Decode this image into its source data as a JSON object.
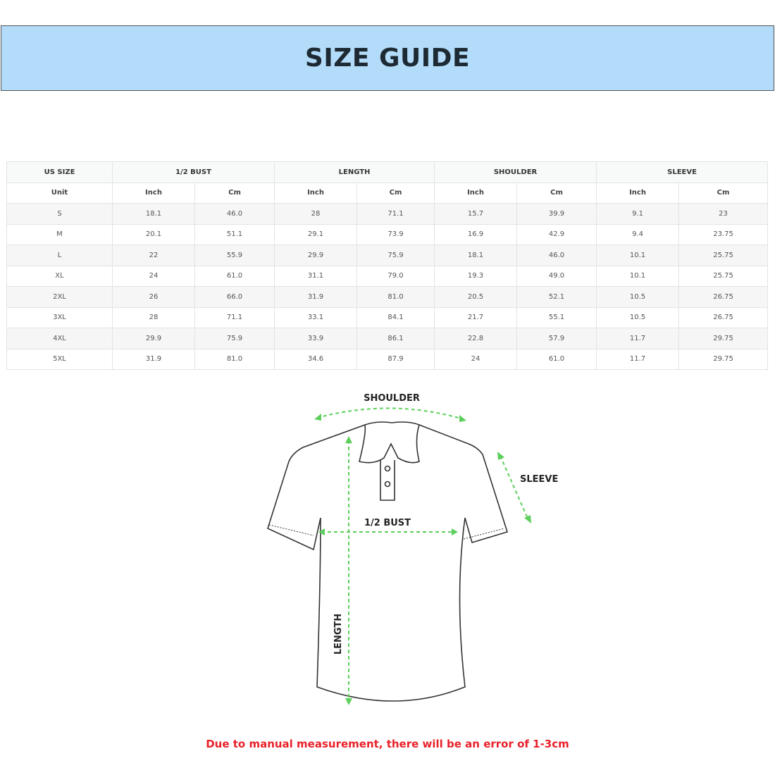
{
  "title": "SIZE GUIDE",
  "table": {
    "groups": [
      "US SIZE",
      "1/2 BUST",
      "LENGTH",
      "SHOULDER",
      "SLEEVE"
    ],
    "units": [
      "Unit",
      "Inch",
      "Cm",
      "Inch",
      "Cm",
      "Inch",
      "Cm",
      "Inch",
      "Cm"
    ],
    "rows": [
      [
        "S",
        "18.1",
        "46.0",
        "28",
        "71.1",
        "15.7",
        "39.9",
        "9.1",
        "23"
      ],
      [
        "M",
        "20.1",
        "51.1",
        "29.1",
        "73.9",
        "16.9",
        "42.9",
        "9.4",
        "23.75"
      ],
      [
        "L",
        "22",
        "55.9",
        "29.9",
        "75.9",
        "18.1",
        "46.0",
        "10.1",
        "25.75"
      ],
      [
        "XL",
        "24",
        "61.0",
        "31.1",
        "79.0",
        "19.3",
        "49.0",
        "10.1",
        "25.75"
      ],
      [
        "2XL",
        "26",
        "66.0",
        "31.9",
        "81.0",
        "20.5",
        "52.1",
        "10.5",
        "26.75"
      ],
      [
        "3XL",
        "28",
        "71.1",
        "33.1",
        "84.1",
        "21.7",
        "55.1",
        "10.5",
        "26.75"
      ],
      [
        "4XL",
        "29.9",
        "75.9",
        "33.9",
        "86.1",
        "22.8",
        "57.9",
        "11.7",
        "29.75"
      ],
      [
        "5XL",
        "31.9",
        "81.0",
        "34.6",
        "87.9",
        "24",
        "61.0",
        "11.7",
        "29.75"
      ]
    ]
  },
  "diagram": {
    "shoulder": "SHOULDER",
    "sleeve": "SLEEVE",
    "bust": "1/2 BUST",
    "length": "LENGTH",
    "arrow_color": "#5ccf5c"
  },
  "note": "Due to manual measurement, there will be an error of 1-3cm",
  "colors": {
    "banner": "#b3dcfa",
    "note": "#e8212b"
  }
}
